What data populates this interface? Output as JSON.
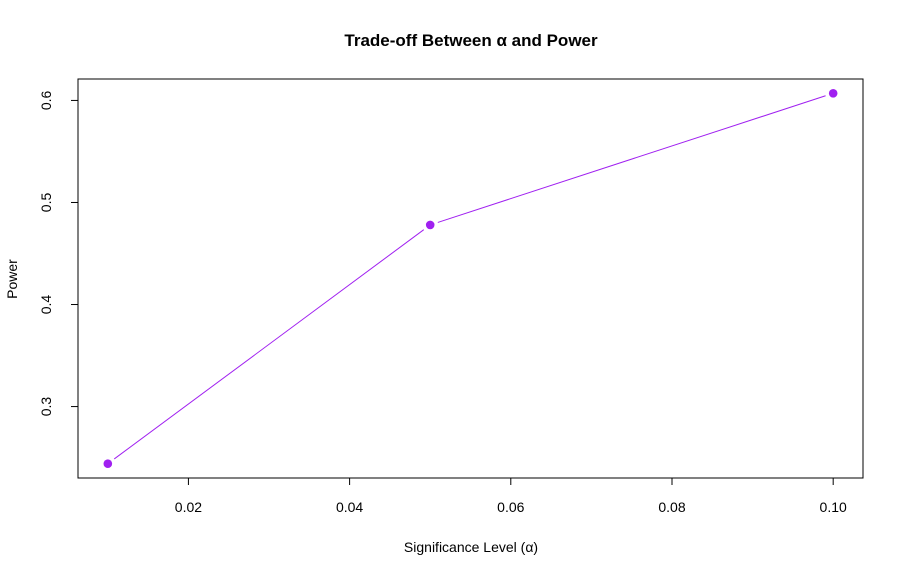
{
  "chart_data": {
    "type": "line",
    "title": "Trade-off Between α and Power",
    "xlabel": "Significance Level (α)",
    "ylabel": "Power",
    "x": [
      0.01,
      0.05,
      0.1
    ],
    "series": [
      {
        "values": [
          0.244,
          0.478,
          0.607
        ],
        "color": "#A020F0"
      }
    ],
    "xticks": [
      0.02,
      0.04,
      0.06,
      0.08,
      0.1
    ],
    "xtick_labels": [
      "0.02",
      "0.04",
      "0.06",
      "0.08",
      "0.10"
    ],
    "yticks": [
      0.3,
      0.4,
      0.5,
      0.6
    ],
    "ytick_labels": [
      "0.3",
      "0.4",
      "0.5",
      "0.6"
    ],
    "xlim": [
      0.0063,
      0.1037
    ],
    "ylim": [
      0.23,
      0.621
    ],
    "grid": false,
    "markers": "filled-circle"
  }
}
